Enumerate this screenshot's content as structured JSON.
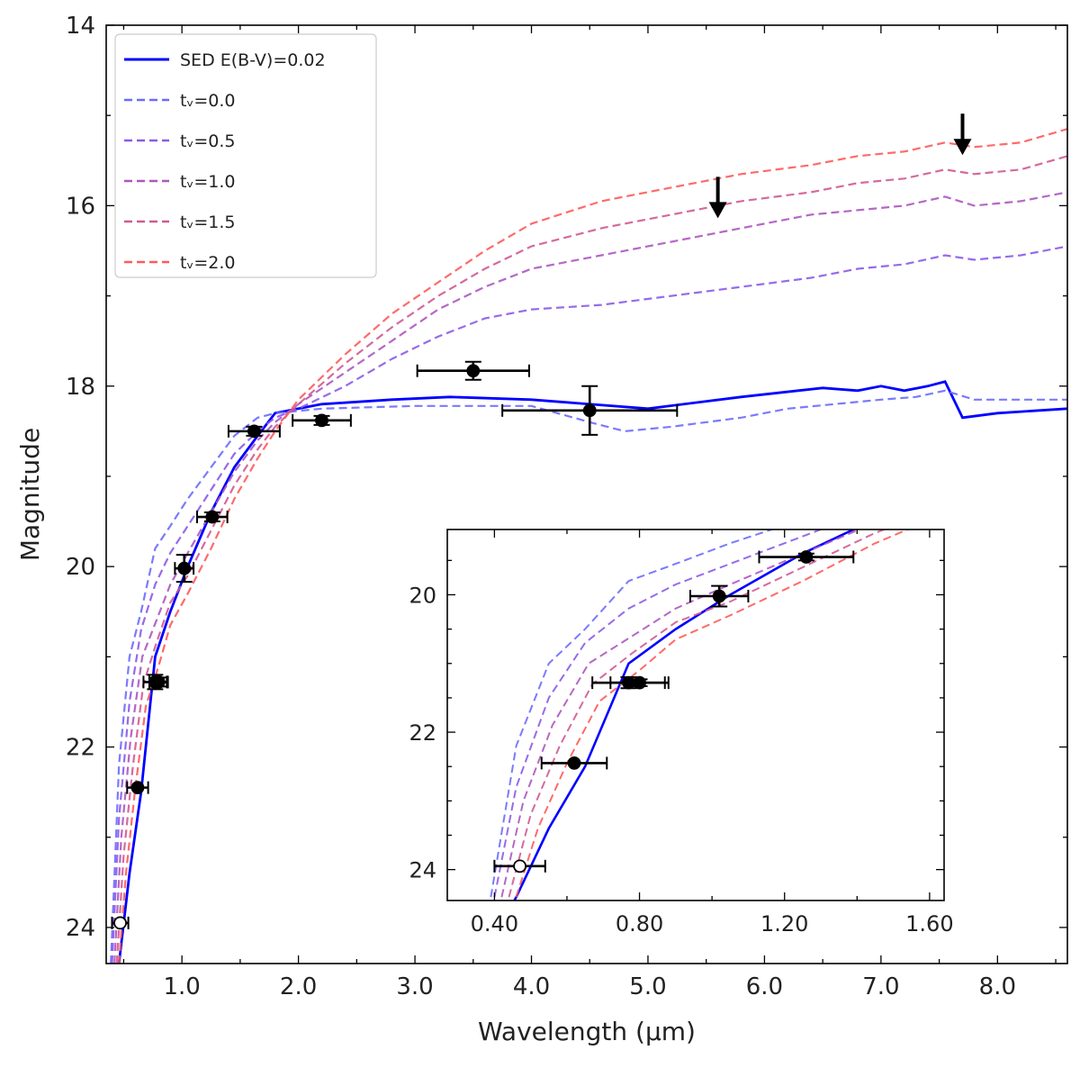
{
  "chart_data": {
    "type": "line",
    "xlabel": "Wavelength (μm)",
    "ylabel": "Magnitude",
    "xlim": [
      0.35,
      8.6
    ],
    "ylim": [
      24.4,
      14.0
    ],
    "y_inverted": true,
    "xticks": [
      1.0,
      2.0,
      3.0,
      4.0,
      5.0,
      6.0,
      7.0,
      8.0
    ],
    "xtick_labels": [
      "1.0",
      "2.0",
      "3.0",
      "4.0",
      "5.0",
      "6.0",
      "7.0",
      "8.0"
    ],
    "yticks": [
      14,
      16,
      18,
      20,
      22,
      24
    ],
    "ytick_labels": [
      "14",
      "16",
      "18",
      "20",
      "22",
      "24"
    ],
    "legend": {
      "location": "top-left",
      "entries": [
        {
          "label": "SED E(B-V)=0.02",
          "color": "#0000ff",
          "style": "solid"
        },
        {
          "label": "tᵥ=0.0",
          "color": "#6b6bff",
          "style": "dashed"
        },
        {
          "label": "tᵥ=0.5",
          "color": "#8c5ae8",
          "style": "dashed"
        },
        {
          "label": "tᵥ=1.0",
          "color": "#ad57c0",
          "style": "dashed"
        },
        {
          "label": "tᵥ=1.5",
          "color": "#d05a93",
          "style": "dashed"
        },
        {
          "label": "tᵥ=2.0",
          "color": "#ff5a5a",
          "style": "dashed"
        }
      ]
    },
    "series": [
      {
        "name": "SED E(B-V)=0.02",
        "color": "#0000ff",
        "style": "solid",
        "x": [
          0.4,
          0.46,
          0.55,
          0.65,
          0.77,
          0.9,
          1.05,
          1.25,
          1.45,
          1.65,
          1.8,
          2.2,
          2.8,
          3.3,
          4.0,
          5.0,
          5.8,
          6.5,
          6.8,
          7.0,
          7.2,
          7.4,
          7.55,
          7.7,
          8.0,
          8.6
        ],
        "y": [
          25.0,
          24.4,
          23.4,
          22.5,
          21.0,
          20.5,
          20.0,
          19.4,
          18.9,
          18.55,
          18.3,
          18.2,
          18.15,
          18.12,
          18.15,
          18.25,
          18.12,
          18.02,
          18.05,
          18.0,
          18.05,
          18.0,
          17.95,
          18.35,
          18.3,
          18.25
        ]
      },
      {
        "name": "tᵥ=0.0",
        "color": "#6b6bff",
        "style": "dashed",
        "x": [
          0.39,
          0.46,
          0.55,
          0.65,
          0.77,
          0.9,
          1.05,
          1.25,
          1.45,
          1.65,
          1.8,
          2.2,
          3.0,
          4.0,
          4.5,
          4.8,
          5.2,
          5.8,
          6.2,
          6.6,
          7.0,
          7.3,
          7.55,
          7.8,
          8.6
        ],
        "y": [
          24.4,
          22.2,
          21.0,
          20.5,
          19.8,
          19.55,
          19.25,
          18.9,
          18.55,
          18.35,
          18.3,
          18.25,
          18.22,
          18.22,
          18.4,
          18.5,
          18.45,
          18.35,
          18.25,
          18.2,
          18.15,
          18.12,
          18.05,
          18.15,
          18.15
        ]
      },
      {
        "name": "tᵥ=0.5",
        "color": "#8c5ae8",
        "style": "dashed",
        "x": [
          0.4,
          0.46,
          0.55,
          0.65,
          0.77,
          0.9,
          1.05,
          1.25,
          1.45,
          1.65,
          1.8,
          2.0,
          2.4,
          2.8,
          3.2,
          3.6,
          4.0,
          4.6,
          5.2,
          5.8,
          6.4,
          6.8,
          7.2,
          7.55,
          7.8,
          8.2,
          8.6
        ],
        "y": [
          24.4,
          22.8,
          21.5,
          20.7,
          20.2,
          19.85,
          19.55,
          19.15,
          18.75,
          18.5,
          18.35,
          18.25,
          18.0,
          17.7,
          17.45,
          17.25,
          17.15,
          17.1,
          17.0,
          16.9,
          16.8,
          16.7,
          16.65,
          16.55,
          16.6,
          16.55,
          16.45
        ]
      },
      {
        "name": "tᵥ=1.0",
        "color": "#ad57c0",
        "style": "dashed",
        "x": [
          0.42,
          0.48,
          0.56,
          0.66,
          0.78,
          0.9,
          1.05,
          1.25,
          1.45,
          1.65,
          1.8,
          2.0,
          2.4,
          2.8,
          3.2,
          3.6,
          4.0,
          4.6,
          5.2,
          5.8,
          6.4,
          6.8,
          7.2,
          7.55,
          7.8,
          8.2,
          8.6
        ],
        "y": [
          24.4,
          23.0,
          21.9,
          21.0,
          20.6,
          20.2,
          19.85,
          19.4,
          18.95,
          18.6,
          18.4,
          18.2,
          17.85,
          17.5,
          17.15,
          16.9,
          16.7,
          16.55,
          16.4,
          16.25,
          16.1,
          16.05,
          16.0,
          15.9,
          16.0,
          15.95,
          15.85
        ]
      },
      {
        "name": "tᵥ=1.5",
        "color": "#d05a93",
        "style": "dashed",
        "x": [
          0.44,
          0.5,
          0.58,
          0.67,
          0.78,
          0.9,
          1.05,
          1.25,
          1.45,
          1.65,
          1.8,
          2.0,
          2.4,
          2.8,
          3.2,
          3.6,
          4.0,
          4.6,
          5.2,
          5.8,
          6.4,
          6.8,
          7.2,
          7.55,
          7.8,
          8.2,
          8.6
        ],
        "y": [
          24.4,
          23.2,
          22.2,
          21.3,
          20.85,
          20.4,
          20.1,
          19.6,
          19.1,
          18.7,
          18.45,
          18.2,
          17.75,
          17.35,
          17.0,
          16.7,
          16.45,
          16.25,
          16.1,
          15.95,
          15.85,
          15.75,
          15.7,
          15.6,
          15.65,
          15.6,
          15.45
        ]
      },
      {
        "name": "tᵥ=2.0",
        "color": "#ff5a5a",
        "style": "dashed",
        "x": [
          0.46,
          0.52,
          0.6,
          0.69,
          0.8,
          0.9,
          1.05,
          1.25,
          1.45,
          1.65,
          1.8,
          2.0,
          2.4,
          2.8,
          3.2,
          3.6,
          4.0,
          4.6,
          5.2,
          5.8,
          6.4,
          6.8,
          7.2,
          7.55,
          7.8,
          8.2,
          8.6
        ],
        "y": [
          24.4,
          23.4,
          22.45,
          21.55,
          21.1,
          20.65,
          20.3,
          19.8,
          19.25,
          18.8,
          18.5,
          18.15,
          17.65,
          17.2,
          16.85,
          16.5,
          16.2,
          15.95,
          15.8,
          15.65,
          15.55,
          15.45,
          15.4,
          15.3,
          15.35,
          15.3,
          15.15
        ]
      }
    ],
    "data_points": [
      {
        "x": 0.47,
        "y": 23.95,
        "xerr": 0.07,
        "yerr": 0.0,
        "filled": false
      },
      {
        "x": 0.62,
        "y": 22.45,
        "xerr": 0.09,
        "yerr": 0.0,
        "filled": true
      },
      {
        "x": 0.77,
        "y": 21.28,
        "xerr": 0.1,
        "yerr": 0.08,
        "filled": true
      },
      {
        "x": 0.8,
        "y": 21.28,
        "xerr": 0.08,
        "yerr": 0.05,
        "filled": true
      },
      {
        "x": 1.02,
        "y": 20.02,
        "xerr": 0.08,
        "yerr": 0.15,
        "filled": true
      },
      {
        "x": 1.26,
        "y": 19.45,
        "xerr": 0.13,
        "yerr": 0.05,
        "filled": true
      },
      {
        "x": 1.62,
        "y": 18.5,
        "xerr": 0.22,
        "yerr": 0.05,
        "filled": true
      },
      {
        "x": 2.2,
        "y": 18.38,
        "xerr": 0.25,
        "yerr": 0.05,
        "filled": true
      },
      {
        "x": 3.5,
        "y": 17.83,
        "xerr": 0.48,
        "yerr": 0.1,
        "filled": true
      },
      {
        "x": 4.5,
        "y": 18.27,
        "xerr": 0.75,
        "yerr": 0.27,
        "filled": true
      }
    ],
    "upper_limits": [
      {
        "x": 5.6,
        "y": 15.9
      },
      {
        "x": 7.7,
        "y": 15.2
      }
    ],
    "inset": {
      "xlim": [
        0.27,
        1.64
      ],
      "ylim": [
        24.45,
        19.05
      ],
      "xticks": [
        0.4,
        0.8,
        1.2,
        1.6
      ],
      "xtick_labels": [
        "0.40",
        "0.80",
        "1.20",
        "1.60"
      ],
      "yticks": [
        20,
        22,
        24
      ],
      "ytick_labels": [
        "20",
        "22",
        "24"
      ]
    }
  }
}
